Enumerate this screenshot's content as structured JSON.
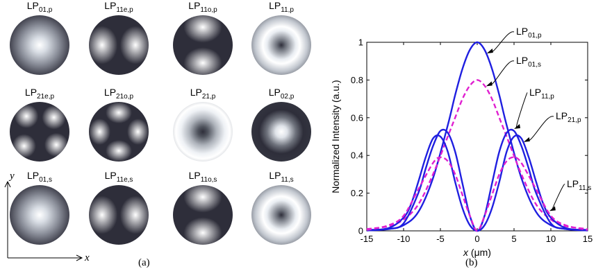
{
  "panel_a": {
    "caption": "(a)",
    "axis_y": "y",
    "axis_x": "x",
    "modes": [
      {
        "base": "LP",
        "sub": "01,p",
        "pattern": "gaussian"
      },
      {
        "base": "LP",
        "sub": "11e,p",
        "pattern": "two-lobe-horizontal"
      },
      {
        "base": "LP",
        "sub": "11o,p",
        "pattern": "two-lobe-vertical"
      },
      {
        "base": "LP",
        "sub": "11,p",
        "pattern": "ring"
      },
      {
        "base": "LP",
        "sub": "21e,p",
        "pattern": "four-lobe-diagonal"
      },
      {
        "base": "LP",
        "sub": "21o,p",
        "pattern": "four-lobe-cross"
      },
      {
        "base": "LP",
        "sub": "21,p",
        "pattern": "ring-wide"
      },
      {
        "base": "LP",
        "sub": "02,p",
        "pattern": "center-spot"
      },
      {
        "base": "LP",
        "sub": "01,s",
        "pattern": "gaussian"
      },
      {
        "base": "LP",
        "sub": "11e,s",
        "pattern": "two-lobe-horizontal"
      },
      {
        "base": "LP",
        "sub": "11o,s",
        "pattern": "two-lobe-vertical"
      },
      {
        "base": "LP",
        "sub": "11,s",
        "pattern": "ring"
      }
    ]
  },
  "panel_b": {
    "caption": "(b)",
    "annotations": [
      {
        "base": "LP",
        "sub": "01,p",
        "target_series": "LP01,p"
      },
      {
        "base": "LP",
        "sub": "01,s",
        "target_series": "LP01,s"
      },
      {
        "base": "LP",
        "sub": "11,p",
        "target_series": "LP11,p"
      },
      {
        "base": "LP",
        "sub": "21,p",
        "target_series": "LP21,p"
      },
      {
        "base": "LP",
        "sub": "11,s",
        "target_series": "LP11,s"
      }
    ]
  },
  "colors": {
    "solid": "#1f1fe0",
    "dashed": "#e020d0",
    "disk_dark": "#2e2e3a",
    "disk_light": "#ffffff"
  },
  "chart_data": {
    "type": "line",
    "xlabel": "x (μm)",
    "ylabel": "Normalized Intensity (a.u.)",
    "xlim": [
      -15,
      15
    ],
    "ylim": [
      0,
      1
    ],
    "xticks": [
      -15,
      -10,
      -5,
      0,
      5,
      10,
      15
    ],
    "yticks": [
      0,
      0.2,
      0.4,
      0.6,
      0.8,
      1
    ],
    "grid": false,
    "series": [
      {
        "name": "LP01,p",
        "style": "solid",
        "color": "#1f1fe0",
        "x": [
          -15,
          -12,
          -10,
          -8,
          -6,
          -4,
          -3,
          -2,
          -1,
          0,
          1,
          2,
          3,
          4,
          6,
          8,
          10,
          12,
          15
        ],
        "y": [
          0.005,
          0.01,
          0.03,
          0.1,
          0.28,
          0.56,
          0.72,
          0.86,
          0.96,
          1.0,
          0.96,
          0.86,
          0.72,
          0.56,
          0.28,
          0.1,
          0.03,
          0.01,
          0.005
        ]
      },
      {
        "name": "LP01,s",
        "style": "dashed",
        "color": "#e020d0",
        "x": [
          -15,
          -12,
          -10,
          -8,
          -6,
          -4,
          -3,
          -2,
          -1,
          0,
          1,
          2,
          3,
          4,
          6,
          8,
          10,
          12,
          15
        ],
        "y": [
          0.01,
          0.025,
          0.06,
          0.14,
          0.3,
          0.5,
          0.6,
          0.7,
          0.77,
          0.8,
          0.77,
          0.7,
          0.6,
          0.5,
          0.3,
          0.14,
          0.06,
          0.025,
          0.01
        ]
      },
      {
        "name": "LP11,p",
        "style": "solid",
        "color": "#1f1fe0",
        "x": [
          -15,
          -12,
          -10,
          -8,
          -7,
          -6,
          -5,
          -4,
          -3,
          -2,
          -1,
          0,
          1,
          2,
          3,
          4,
          5,
          6,
          7,
          8,
          10,
          12,
          15
        ],
        "y": [
          0.002,
          0.01,
          0.04,
          0.2,
          0.33,
          0.45,
          0.53,
          0.52,
          0.42,
          0.25,
          0.08,
          0,
          0.08,
          0.25,
          0.42,
          0.52,
          0.53,
          0.45,
          0.33,
          0.2,
          0.04,
          0.01,
          0.002
        ]
      },
      {
        "name": "LP21,p",
        "style": "solid",
        "color": "#1f1fe0",
        "x": [
          -15,
          -12,
          -10,
          -9,
          -8,
          -7,
          -6,
          -5,
          -4,
          -3,
          -2,
          -1,
          0,
          1,
          2,
          3,
          4,
          5,
          6,
          7,
          8,
          9,
          10,
          12,
          15
        ],
        "y": [
          0.002,
          0.015,
          0.07,
          0.14,
          0.26,
          0.39,
          0.49,
          0.5,
          0.42,
          0.26,
          0.12,
          0.03,
          0,
          0.03,
          0.12,
          0.26,
          0.42,
          0.5,
          0.49,
          0.39,
          0.26,
          0.14,
          0.07,
          0.015,
          0.002
        ]
      },
      {
        "name": "LP11,s",
        "style": "dashed",
        "color": "#e020d0",
        "x": [
          -15,
          -12,
          -10,
          -8,
          -6,
          -5,
          -4,
          -3,
          -2,
          -1,
          0,
          1,
          2,
          3,
          4,
          5,
          6,
          8,
          10,
          12,
          15
        ],
        "y": [
          0.005,
          0.03,
          0.08,
          0.22,
          0.36,
          0.39,
          0.37,
          0.3,
          0.19,
          0.08,
          0,
          0.08,
          0.19,
          0.3,
          0.37,
          0.39,
          0.36,
          0.22,
          0.08,
          0.03,
          0.005
        ]
      }
    ]
  }
}
